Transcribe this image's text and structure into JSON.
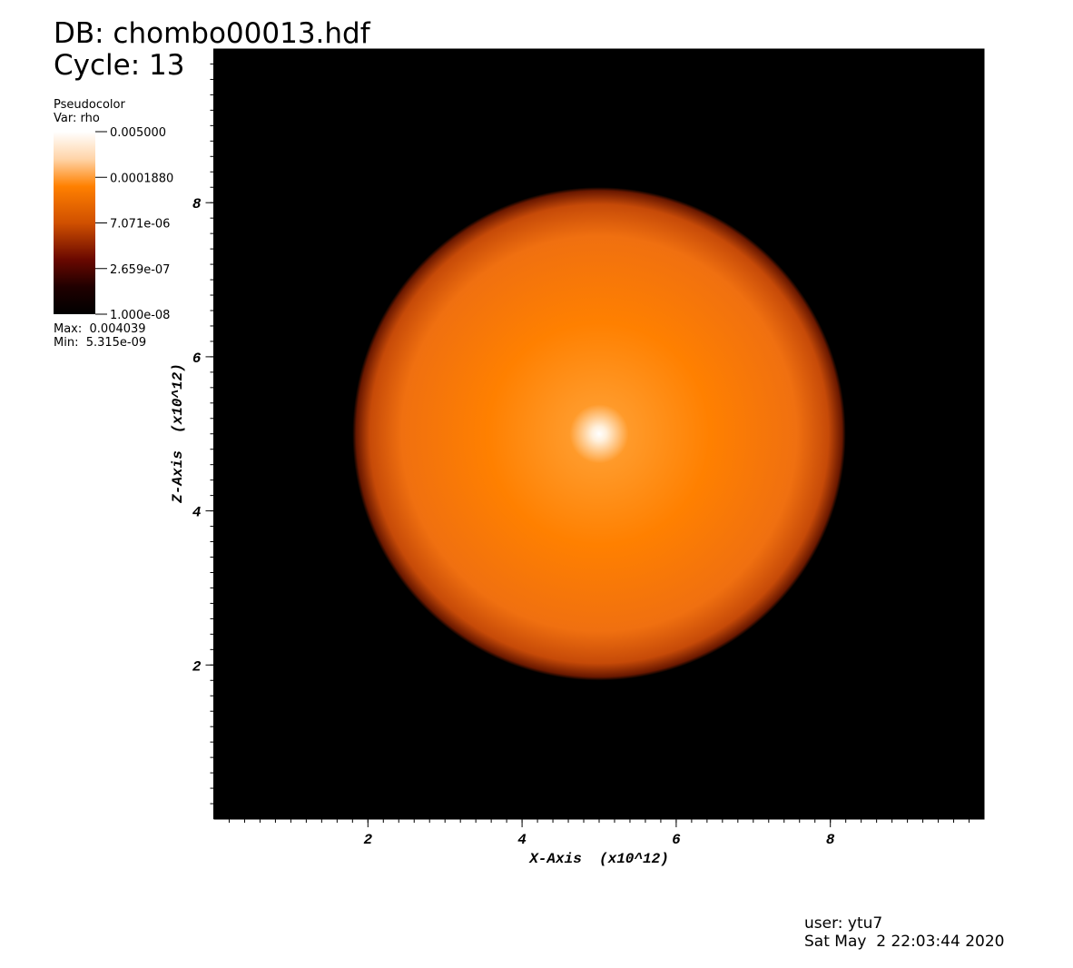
{
  "chart_data": {
    "type": "pseudocolor",
    "title": "DB: chombo00013.hdf",
    "subtitle": "Cycle: 13",
    "x_label": "X-Axis  (x10^12)",
    "y_label": "Z-Axis  (x10^12)",
    "xlim": [
      0,
      10
    ],
    "ylim": [
      0,
      10
    ],
    "xticks": [
      2,
      4,
      6,
      8
    ],
    "yticks": [
      2,
      4,
      6,
      8
    ],
    "background": "#000000",
    "sphere": {
      "center": [
        5,
        5
      ],
      "radius": 3.2
    },
    "legend": {
      "plot": "Pseudocolor",
      "var": "Var: rho",
      "log": true,
      "clim": [
        1e-08,
        0.005
      ],
      "ticks": [
        {
          "value": 0.005,
          "label": "0.005000"
        },
        {
          "value": 0.000188,
          "label": "0.0001880"
        },
        {
          "value": 7.071e-06,
          "label": "7.071e-06"
        },
        {
          "value": 2.659e-07,
          "label": "2.659e-07"
        },
        {
          "value": 1e-08,
          "label": "1.000e-08"
        }
      ],
      "max": "Max:  0.004039",
      "min": "Min:  5.315e-09"
    },
    "user": "user: ytu7",
    "date": "Sat May  2 22:03:44 2020"
  }
}
